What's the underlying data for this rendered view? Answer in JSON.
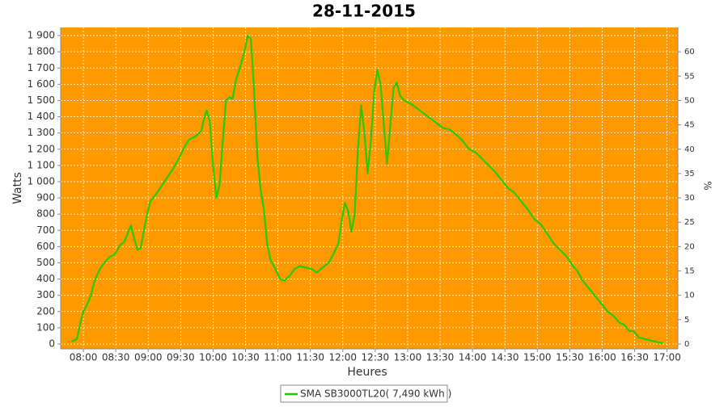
{
  "chart_data": {
    "type": "line",
    "title": "28-11-2015",
    "x_label": "Heures",
    "y_label": "Watts",
    "y2_label": "%",
    "x": [
      "07:49",
      "07:54",
      "07:58",
      "08:00",
      "08:04",
      "08:07",
      "08:10",
      "08:13",
      "08:17",
      "08:22",
      "08:25",
      "08:29",
      "08:34",
      "08:38",
      "08:41",
      "08:44",
      "08:47",
      "08:50",
      "08:53",
      "08:56",
      "08:59",
      "09:02",
      "09:07",
      "09:11",
      "09:17",
      "09:23",
      "09:29",
      "09:34",
      "09:38",
      "09:44",
      "09:49",
      "09:51",
      "09:54",
      "09:57",
      "10:00",
      "10:03",
      "10:06",
      "10:09",
      "10:12",
      "10:15",
      "10:18",
      "10:21",
      "10:26",
      "10:29",
      "10:32",
      "10:35",
      "10:38",
      "10:41",
      "10:44",
      "10:47",
      "10:50",
      "10:53",
      "10:57",
      "11:02",
      "11:06",
      "11:11",
      "11:15",
      "11:20",
      "11:26",
      "11:32",
      "11:36",
      "11:41",
      "11:47",
      "11:51",
      "11:56",
      "11:59",
      "12:02",
      "12:05",
      "12:08",
      "12:11",
      "12:14",
      "12:17",
      "12:20",
      "12:23",
      "12:26",
      "12:29",
      "12:32",
      "12:35",
      "12:38",
      "12:41",
      "12:44",
      "12:47",
      "12:50",
      "12:53",
      "12:57",
      "13:03",
      "13:09",
      "13:15",
      "13:21",
      "13:27",
      "13:33",
      "13:39",
      "13:45",
      "13:51",
      "13:57",
      "14:03",
      "14:09",
      "14:15",
      "14:21",
      "14:27",
      "14:33",
      "14:39",
      "14:45",
      "14:51",
      "14:57",
      "15:03",
      "15:09",
      "15:15",
      "15:21",
      "15:27",
      "15:33",
      "15:37",
      "15:42",
      "15:48",
      "15:53",
      "15:59",
      "16:05",
      "16:11",
      "16:16",
      "16:20",
      "16:25",
      "16:29",
      "16:34",
      "16:40",
      "16:46",
      "16:52",
      "16:56"
    ],
    "series": [
      {
        "name": "SMA SB3000TL20( 7,490 kWh )",
        "color": "#22cc00",
        "values": [
          15,
          30,
          150,
          200,
          250,
          300,
          380,
          430,
          480,
          520,
          540,
          550,
          610,
          630,
          680,
          730,
          650,
          580,
          590,
          700,
          800,
          880,
          920,
          960,
          1020,
          1080,
          1150,
          1220,
          1260,
          1280,
          1310,
          1370,
          1440,
          1370,
          1100,
          900,
          980,
          1250,
          1500,
          1520,
          1510,
          1620,
          1730,
          1800,
          1900,
          1880,
          1550,
          1150,
          950,
          830,
          620,
          520,
          470,
          400,
          390,
          420,
          460,
          480,
          470,
          460,
          440,
          470,
          500,
          550,
          620,
          760,
          870,
          820,
          690,
          800,
          1200,
          1470,
          1300,
          1050,
          1250,
          1550,
          1690,
          1600,
          1350,
          1110,
          1350,
          1580,
          1610,
          1530,
          1500,
          1480,
          1450,
          1420,
          1390,
          1360,
          1330,
          1320,
          1290,
          1250,
          1200,
          1180,
          1140,
          1100,
          1060,
          1010,
          960,
          930,
          880,
          830,
          770,
          740,
          680,
          620,
          580,
          540,
          480,
          450,
          390,
          340,
          300,
          250,
          200,
          170,
          130,
          120,
          80,
          80,
          40,
          30,
          20,
          10,
          5
        ]
      }
    ],
    "xlim": [
      "07:39",
      "17:10"
    ],
    "xticks": [
      "08:00",
      "08:30",
      "09:00",
      "09:30",
      "10:00",
      "10:30",
      "11:00",
      "11:30",
      "12:00",
      "12:30",
      "13:00",
      "13:30",
      "14:00",
      "14:30",
      "15:00",
      "15:30",
      "16:00",
      "16:30",
      "17:00"
    ],
    "ylim": [
      -30,
      1950
    ],
    "yticks": [
      0,
      100,
      200,
      300,
      400,
      500,
      600,
      700,
      800,
      900,
      {
        "value": 1000,
        "label": "1 000"
      },
      {
        "value": 1100,
        "label": "1 100"
      },
      {
        "value": 1200,
        "label": "1 200"
      },
      {
        "value": 1300,
        "label": "1 300"
      },
      {
        "value": 1400,
        "label": "1 400"
      },
      {
        "value": 1500,
        "label": "1 500"
      },
      {
        "value": 1600,
        "label": "1 600"
      },
      {
        "value": 1700,
        "label": "1 700"
      },
      {
        "value": 1800,
        "label": "1 800"
      },
      {
        "value": 1900,
        "label": "1 900"
      }
    ],
    "y2lim": [
      -1,
      65
    ],
    "y2ticks": [
      0,
      5,
      10,
      15,
      20,
      25,
      30,
      35,
      40,
      45,
      50,
      55,
      60
    ],
    "plot_background": "#ff9900",
    "grid": true
  }
}
